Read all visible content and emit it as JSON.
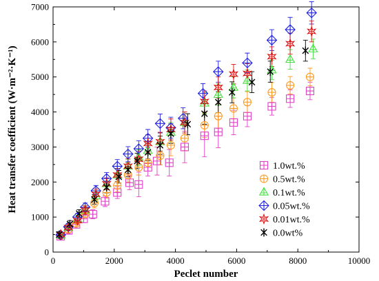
{
  "chart_data": {
    "type": "scatter",
    "xlabel": "Peclet number",
    "ylabel": "Heat transfer coefficient (W·m⁻²·K⁻¹)",
    "xlim": [
      0,
      10000
    ],
    "ylim": [
      0,
      7000
    ],
    "xticks": [
      0,
      2000,
      4000,
      6000,
      8000,
      10000
    ],
    "yticks": [
      0,
      1000,
      2000,
      3000,
      4000,
      5000,
      6000,
      7000
    ],
    "grid": false,
    "legend_position": "lower-right",
    "series": [
      {
        "name": "1.0wt.%",
        "marker": "square-plus",
        "color": "#e040c8",
        "points": [
          [
            250,
            450,
            80
          ],
          [
            500,
            620,
            90
          ],
          [
            750,
            790,
            100
          ],
          [
            1000,
            950,
            110
          ],
          [
            1300,
            1080,
            130
          ],
          [
            1700,
            1450,
            150
          ],
          [
            2100,
            1700,
            170
          ],
          [
            2500,
            1980,
            200
          ],
          [
            2800,
            1930,
            350
          ],
          [
            3100,
            2420,
            250
          ],
          [
            3400,
            2600,
            400
          ],
          [
            3800,
            2550,
            380
          ],
          [
            4300,
            3000,
            450
          ],
          [
            4950,
            3320,
            600
          ],
          [
            5400,
            3430,
            450
          ],
          [
            5900,
            3700,
            350
          ],
          [
            6350,
            3880,
            300
          ],
          [
            7150,
            4160,
            250
          ],
          [
            7750,
            4380,
            250
          ],
          [
            8400,
            4600,
            250
          ]
        ]
      },
      {
        "name": "0.5wt.%",
        "marker": "circle-plus",
        "color": "#ff9a20",
        "points": [
          [
            250,
            470,
            80
          ],
          [
            500,
            650,
            90
          ],
          [
            750,
            820,
            100
          ],
          [
            1050,
            1100,
            120
          ],
          [
            1350,
            1400,
            140
          ],
          [
            1750,
            1700,
            160
          ],
          [
            2100,
            1900,
            180
          ],
          [
            2450,
            2200,
            200
          ],
          [
            2800,
            2420,
            220
          ],
          [
            3100,
            2550,
            240
          ],
          [
            3500,
            2750,
            260
          ],
          [
            3850,
            3050,
            300
          ],
          [
            4300,
            3250,
            350
          ],
          [
            4950,
            3620,
            350
          ],
          [
            5400,
            3880,
            350
          ],
          [
            5900,
            4100,
            300
          ],
          [
            6350,
            4280,
            300
          ],
          [
            7150,
            4560,
            280
          ],
          [
            7750,
            4760,
            250
          ],
          [
            8400,
            5000,
            250
          ]
        ]
      },
      {
        "name": "0.1wt.%",
        "marker": "triangle",
        "color": "#44e040",
        "points": [
          [
            250,
            480,
            80
          ],
          [
            500,
            700,
            90
          ],
          [
            800,
            950,
            100
          ],
          [
            1050,
            1200,
            120
          ],
          [
            1400,
            1600,
            140
          ],
          [
            1750,
            1950,
            160
          ],
          [
            2100,
            2200,
            180
          ],
          [
            2450,
            2450,
            200
          ],
          [
            2800,
            2700,
            220
          ],
          [
            3100,
            2900,
            240
          ],
          [
            3500,
            3150,
            260
          ],
          [
            3850,
            3420,
            280
          ],
          [
            4300,
            3700,
            300
          ],
          [
            4950,
            4250,
            300
          ],
          [
            5400,
            4500,
            300
          ],
          [
            5900,
            4700,
            300
          ],
          [
            6350,
            4900,
            300
          ],
          [
            7150,
            5200,
            280
          ],
          [
            7750,
            5500,
            280
          ],
          [
            8500,
            5800,
            280
          ]
        ]
      },
      {
        "name": "0.05wt.%",
        "marker": "diamond-plus",
        "color": "#2020e0",
        "points": [
          [
            250,
            490,
            80
          ],
          [
            500,
            720,
            90
          ],
          [
            800,
            1000,
            100
          ],
          [
            1050,
            1280,
            120
          ],
          [
            1400,
            1750,
            150
          ],
          [
            1750,
            2100,
            170
          ],
          [
            2100,
            2450,
            190
          ],
          [
            2450,
            2800,
            210
          ],
          [
            2800,
            2950,
            230
          ],
          [
            3100,
            3250,
            250
          ],
          [
            3500,
            3670,
            270
          ],
          [
            3850,
            3550,
            300
          ],
          [
            4250,
            3820,
            300
          ],
          [
            4900,
            4530,
            280
          ],
          [
            5400,
            5150,
            300
          ],
          [
            6350,
            5400,
            280
          ],
          [
            7150,
            6050,
            300
          ],
          [
            7750,
            6350,
            350
          ],
          [
            8450,
            6830,
            320
          ]
        ]
      },
      {
        "name": "0.01wt.%",
        "marker": "star",
        "color": "#e01010",
        "points": [
          [
            250,
            500,
            80
          ],
          [
            500,
            700,
            90
          ],
          [
            800,
            900,
            100
          ],
          [
            1050,
            1200,
            120
          ],
          [
            1400,
            1650,
            150
          ],
          [
            1750,
            1950,
            170
          ],
          [
            2100,
            2200,
            190
          ],
          [
            2450,
            2450,
            210
          ],
          [
            2800,
            2650,
            230
          ],
          [
            3100,
            3100,
            250
          ],
          [
            3500,
            3150,
            270
          ],
          [
            3850,
            3500,
            300
          ],
          [
            4300,
            3700,
            300
          ],
          [
            4950,
            4300,
            300
          ],
          [
            5400,
            4700,
            300
          ],
          [
            5900,
            5080,
            280
          ],
          [
            6350,
            5100,
            280
          ],
          [
            7150,
            5580,
            280
          ],
          [
            7750,
            5950,
            300
          ],
          [
            8450,
            6300,
            300
          ]
        ]
      },
      {
        "name": "0.0wt%",
        "marker": "asterisk",
        "color": "#000000",
        "points": [
          [
            200,
            500,
            80
          ],
          [
            550,
            800,
            100
          ],
          [
            850,
            1100,
            110
          ],
          [
            1350,
            1500,
            140
          ],
          [
            1750,
            1850,
            160
          ],
          [
            2150,
            2150,
            180
          ],
          [
            2450,
            2350,
            200
          ],
          [
            2750,
            2600,
            220
          ],
          [
            3100,
            2850,
            240
          ],
          [
            3500,
            3050,
            260
          ],
          [
            3850,
            3380,
            280
          ],
          [
            4400,
            3650,
            300
          ],
          [
            4950,
            3950,
            300
          ],
          [
            5400,
            4280,
            300
          ],
          [
            5850,
            4560,
            300
          ],
          [
            6500,
            4850,
            300
          ],
          [
            7100,
            5150,
            300
          ],
          [
            8250,
            5750,
            300
          ]
        ]
      }
    ]
  }
}
